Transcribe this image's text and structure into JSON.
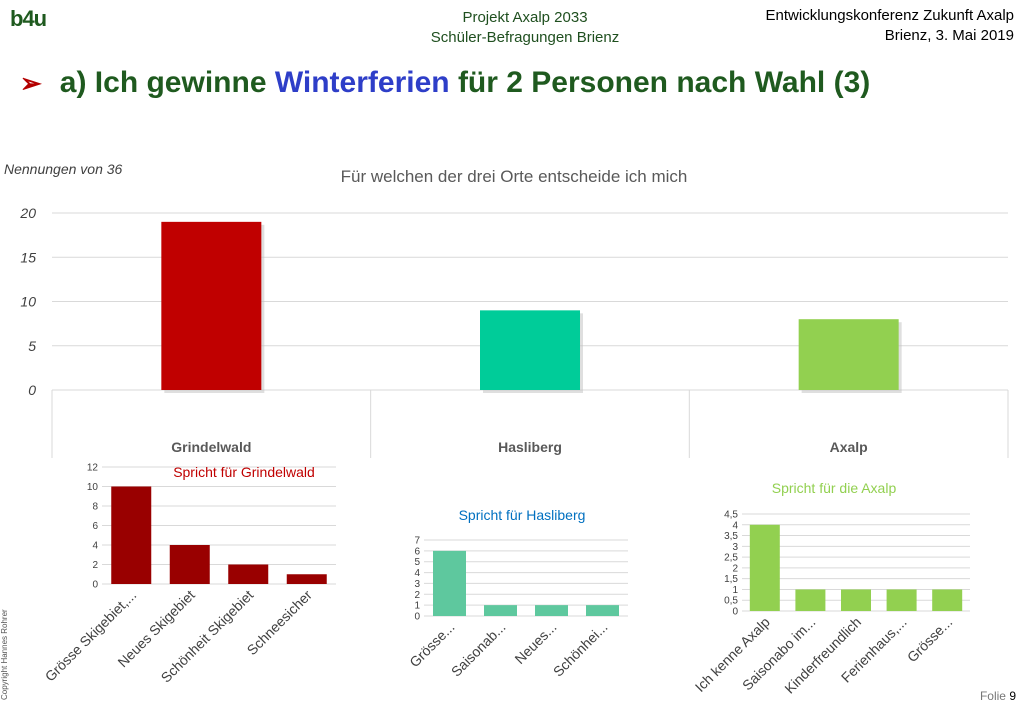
{
  "header": {
    "logo": "b4u",
    "project_line1": "Projekt Axalp 2033",
    "project_line2": "Schüler-Befragungen Brienz",
    "conference_line1": "Entwicklungskonferenz Zukunft Axalp",
    "conference_line2": "Brienz, 3. Mai 2019"
  },
  "slide": {
    "title_prefix": "a) Ich gewinne ",
    "title_highlight": "Winterferien",
    "title_suffix": " für 2 Personen nach Wahl (3)"
  },
  "footer": {
    "copyright": "Copyright Hannes Rohrer",
    "slide_label": "Folie",
    "slide_number": "9"
  },
  "chart_data": [
    {
      "type": "bar",
      "title": "Für welchen der drei Orte entscheide ich mich",
      "ylabel": "Nennungen von 36",
      "categories": [
        "Grindelwald",
        "Hasliberg",
        "Axalp"
      ],
      "values": [
        19,
        9,
        8
      ],
      "ylim": [
        0,
        20
      ],
      "yticks": [
        "0",
        "5",
        "10",
        "15",
        "20"
      ],
      "colors": [
        "#c00000",
        "#00cc99",
        "#92d050"
      ],
      "grid": true
    },
    {
      "type": "bar",
      "title": "Spricht für Grindelwald",
      "title_color": "#c00000",
      "categories": [
        "Grösse Skigebiet,...",
        "Neues Skigebiet",
        "Schönheit Skigebiet",
        "Schneesicher"
      ],
      "values": [
        10,
        4,
        2,
        1
      ],
      "ylim": [
        0,
        12
      ],
      "yticks": [
        "0",
        "2",
        "4",
        "6",
        "8",
        "10",
        "12"
      ],
      "color": "#990000",
      "grid": true
    },
    {
      "type": "bar",
      "title": "Spricht für Hasliberg",
      "title_color": "#0070c0",
      "categories": [
        "Grösse...",
        "Saisonab...",
        "Neues...",
        "Schönhei..."
      ],
      "values": [
        6,
        1,
        1,
        1
      ],
      "ylim": [
        0,
        7
      ],
      "yticks": [
        "0",
        "1",
        "2",
        "3",
        "4",
        "5",
        "6",
        "7"
      ],
      "color": "#5ec89e",
      "grid": true
    },
    {
      "type": "bar",
      "title": "Spricht für die Axalp",
      "title_color": "#92d050",
      "categories": [
        "Ich kenne Axalp",
        "Saisonabo im...",
        "Kinderfreundlich",
        "Ferienhaus,...",
        "Grösse..."
      ],
      "values": [
        4,
        1,
        1,
        1,
        1
      ],
      "ylim": [
        0,
        4.5
      ],
      "yticks": [
        "0",
        "0,5",
        "1",
        "1,5",
        "2",
        "2,5",
        "3",
        "3,5",
        "4",
        "4,5"
      ],
      "color": "#92d050",
      "grid": true
    }
  ]
}
